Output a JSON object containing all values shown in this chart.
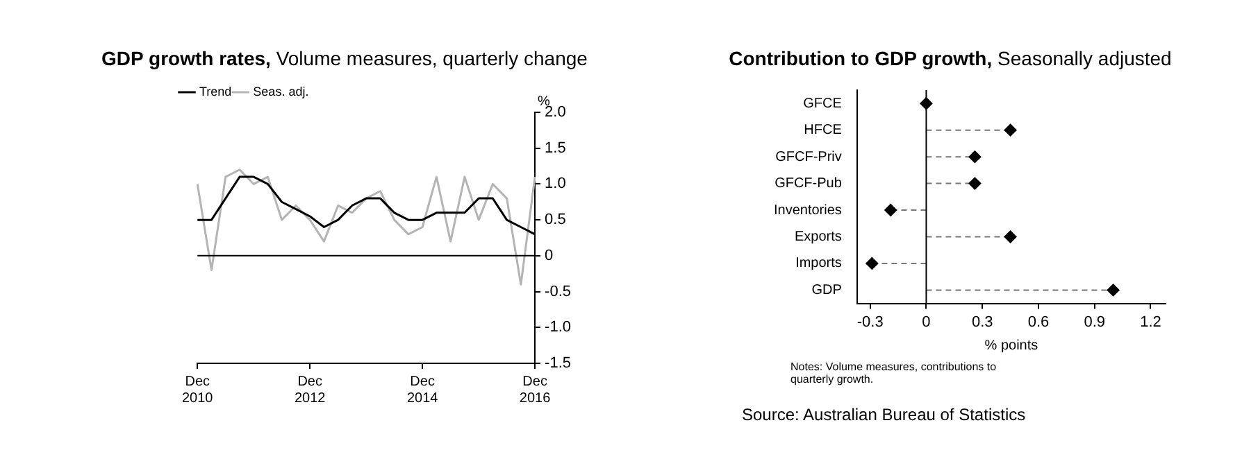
{
  "chart_data": [
    {
      "type": "line",
      "title": "GDP growth rates,",
      "subtitle": "Volume measures, quarterly change",
      "ylabel": "%",
      "categories": [
        "Dec 2010",
        null,
        null,
        null,
        null,
        null,
        null,
        null,
        "Dec 2012",
        null,
        null,
        null,
        null,
        null,
        null,
        null,
        "Dec 2014",
        null,
        null,
        null,
        null,
        null,
        null,
        null,
        "Dec 2016"
      ],
      "series": [
        {
          "name": "Trend",
          "color": "#000000",
          "values": [
            0.5,
            0.5,
            0.8,
            1.1,
            1.1,
            1.0,
            0.75,
            0.65,
            0.55,
            0.4,
            0.5,
            0.7,
            0.8,
            0.8,
            0.6,
            0.5,
            0.5,
            0.6,
            0.6,
            0.6,
            0.8,
            0.8,
            0.5,
            0.4,
            0.3
          ]
        },
        {
          "name": "Seas. adj.",
          "color": "#b4b4b4",
          "values": [
            1.0,
            -0.2,
            1.1,
            1.2,
            1.0,
            1.1,
            0.5,
            0.7,
            0.5,
            0.2,
            0.7,
            0.6,
            0.8,
            0.9,
            0.5,
            0.3,
            0.4,
            1.1,
            0.2,
            1.1,
            0.5,
            1.0,
            0.8,
            -0.4,
            1.1
          ]
        }
      ],
      "ylim": [
        -1.5,
        2.0
      ],
      "yticks": [
        {
          "value": 2,
          "label": "2.0"
        },
        1.5,
        {
          "value": 1,
          "label": "1.0"
        },
        0.5,
        0,
        -0.5,
        {
          "value": -1,
          "label": "-1.0"
        },
        -1.5
      ],
      "ref_lines": [
        {
          "axis": "y",
          "value": 0,
          "color": "#000000"
        }
      ],
      "grid": false,
      "legend": "top left",
      "marker": "none",
      "line_style": "solid"
    },
    {
      "type": "lollipop",
      "orientation": "horizontal",
      "title": "Contribution to GDP growth,",
      "subtitle": "Seasonally adjusted",
      "xlabel": "% points",
      "categories": [
        "GFCE",
        "HFCE",
        "GFCF-Priv",
        "GFCF-Pub",
        "Inventories",
        "Exports",
        "Imports",
        "GDP"
      ],
      "values": [
        0,
        0.45,
        0.26,
        0.26,
        -0.19,
        0.45,
        -0.29,
        1.0
      ],
      "color": "#000000",
      "xlim": [
        -0.37,
        1.28
      ],
      "xticks": [
        -0.3,
        0,
        0.3,
        0.6,
        0.9,
        1.2
      ],
      "ref_lines": [
        {
          "axis": "x",
          "value": 0,
          "color": "#000000"
        }
      ],
      "grid": false,
      "legend": false,
      "marker": "diamond",
      "line_style": "dashed",
      "annotations": [
        "Notes: Volume measures, contributions to quarterly growth.",
        "Source: Australian Bureau of Statistics"
      ]
    }
  ]
}
